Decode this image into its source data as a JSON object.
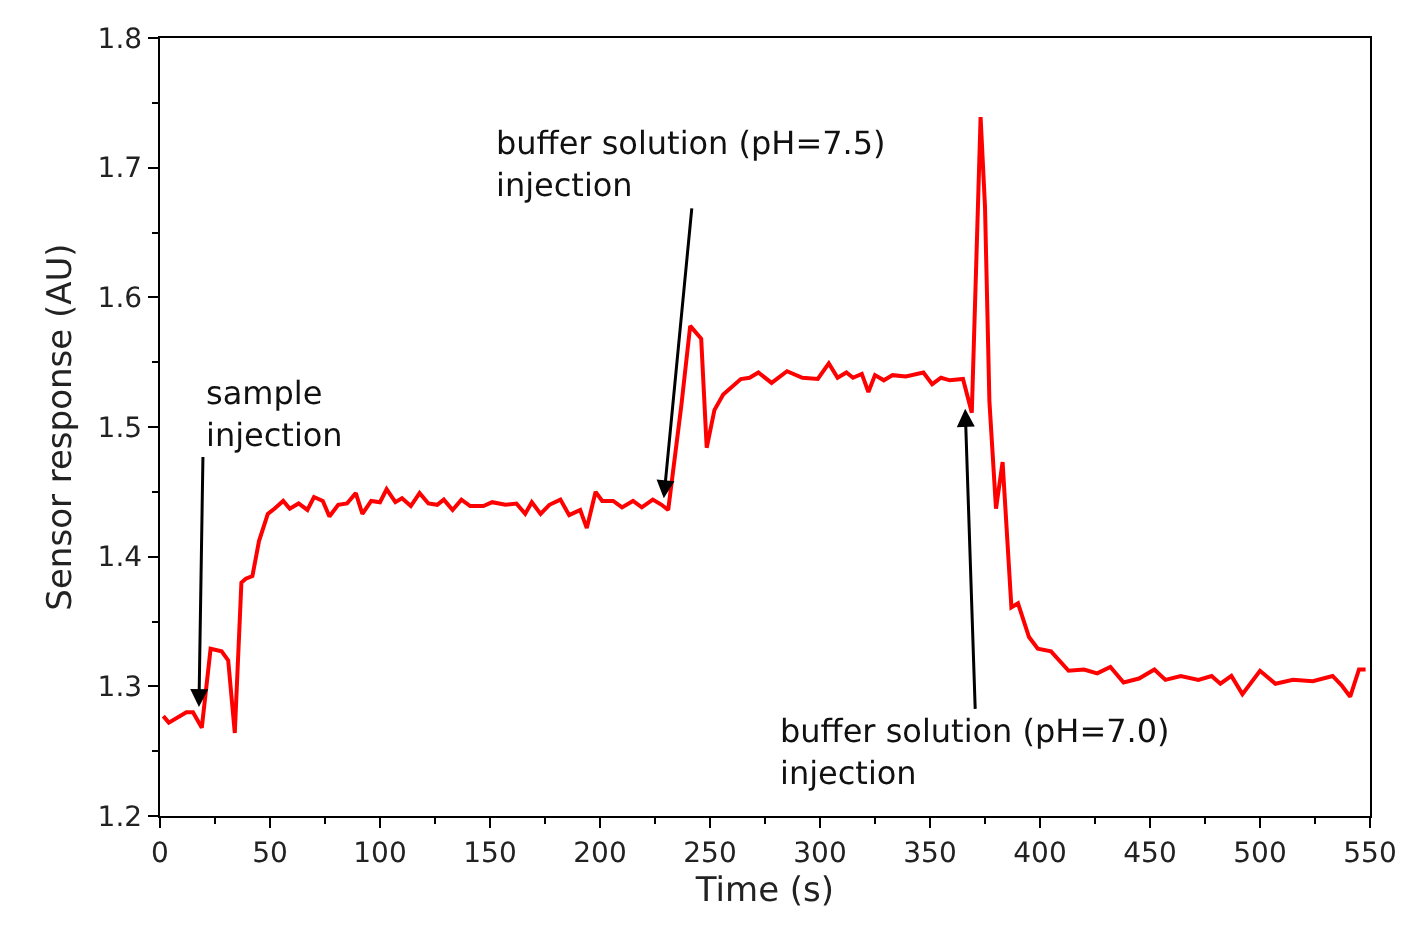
{
  "chart_data": {
    "type": "line",
    "xlabel": "Time (s)",
    "ylabel": "Sensor response (AU)",
    "xlim": [
      0,
      550
    ],
    "xticks": [
      0,
      50,
      100,
      150,
      200,
      250,
      300,
      350,
      400,
      450,
      500,
      550
    ],
    "ylim": [
      1.2,
      1.8
    ],
    "yticks": [
      1.2,
      1.3,
      1.4,
      1.5,
      1.6,
      1.7,
      1.8
    ],
    "marker": "none",
    "line_style": "solid",
    "series": [
      {
        "color": "#ff0000",
        "x": [
          1.5,
          4,
          12,
          15,
          19,
          23,
          28,
          31,
          34,
          37,
          39,
          42,
          45,
          49,
          52,
          56,
          59,
          63,
          67,
          70,
          74,
          77,
          81,
          85,
          89,
          92,
          96,
          100,
          103,
          107,
          110,
          114,
          118,
          122,
          126,
          129,
          133,
          137,
          141,
          147,
          151,
          157,
          162,
          166,
          169,
          173,
          177,
          182,
          186,
          191,
          194,
          198,
          201,
          206,
          210,
          215,
          219,
          224,
          228,
          231,
          237,
          241,
          246,
          248.5,
          252,
          256,
          264,
          268,
          272,
          278,
          285,
          292,
          299,
          304,
          308,
          312,
          315,
          319,
          322,
          325,
          329,
          333,
          339,
          347,
          351,
          355,
          359,
          365,
          369,
          373,
          375,
          377,
          380,
          383,
          387,
          390,
          395,
          399,
          405,
          413,
          420,
          426,
          432,
          438,
          445,
          452,
          457,
          464,
          472,
          478,
          482,
          487,
          492,
          500,
          507,
          515,
          524,
          533,
          537,
          541,
          545,
          548
        ],
        "values": [
          1.277,
          1.272,
          1.28,
          1.28,
          1.268,
          1.329,
          1.327,
          1.32,
          1.264,
          1.38,
          1.383,
          1.385,
          1.412,
          1.433,
          1.437,
          1.443,
          1.437,
          1.441,
          1.436,
          1.446,
          1.443,
          1.431,
          1.44,
          1.441,
          1.449,
          1.433,
          1.443,
          1.442,
          1.452,
          1.442,
          1.445,
          1.439,
          1.449,
          1.441,
          1.44,
          1.444,
          1.436,
          1.444,
          1.439,
          1.439,
          1.442,
          1.44,
          1.441,
          1.433,
          1.442,
          1.433,
          1.44,
          1.444,
          1.432,
          1.436,
          1.422,
          1.45,
          1.443,
          1.443,
          1.438,
          1.443,
          1.438,
          1.444,
          1.44,
          1.436,
          1.517,
          1.578,
          1.568,
          1.484,
          1.513,
          1.525,
          1.537,
          1.538,
          1.542,
          1.534,
          1.543,
          1.538,
          1.537,
          1.549,
          1.538,
          1.542,
          1.538,
          1.541,
          1.527,
          1.54,
          1.536,
          1.54,
          1.539,
          1.542,
          1.533,
          1.538,
          1.536,
          1.537,
          1.511,
          1.739,
          1.67,
          1.52,
          1.437,
          1.473,
          1.361,
          1.364,
          1.338,
          1.329,
          1.327,
          1.312,
          1.313,
          1.31,
          1.315,
          1.303,
          1.306,
          1.313,
          1.305,
          1.308,
          1.305,
          1.308,
          1.302,
          1.308,
          1.294,
          1.312,
          1.302,
          1.305,
          1.304,
          1.308,
          1.301,
          1.292,
          1.313,
          1.313
        ]
      }
    ],
    "annotations": [
      {
        "text": "sample\ninjection",
        "x": 17.7,
        "y": 1.284
      },
      {
        "text": "buffer solution (pH=7.5)\ninjection",
        "x": 229,
        "y": 1.445
      },
      {
        "text": "buffer solution (pH=7.0)\ninjection",
        "x": 366,
        "y": 1.514
      }
    ]
  }
}
